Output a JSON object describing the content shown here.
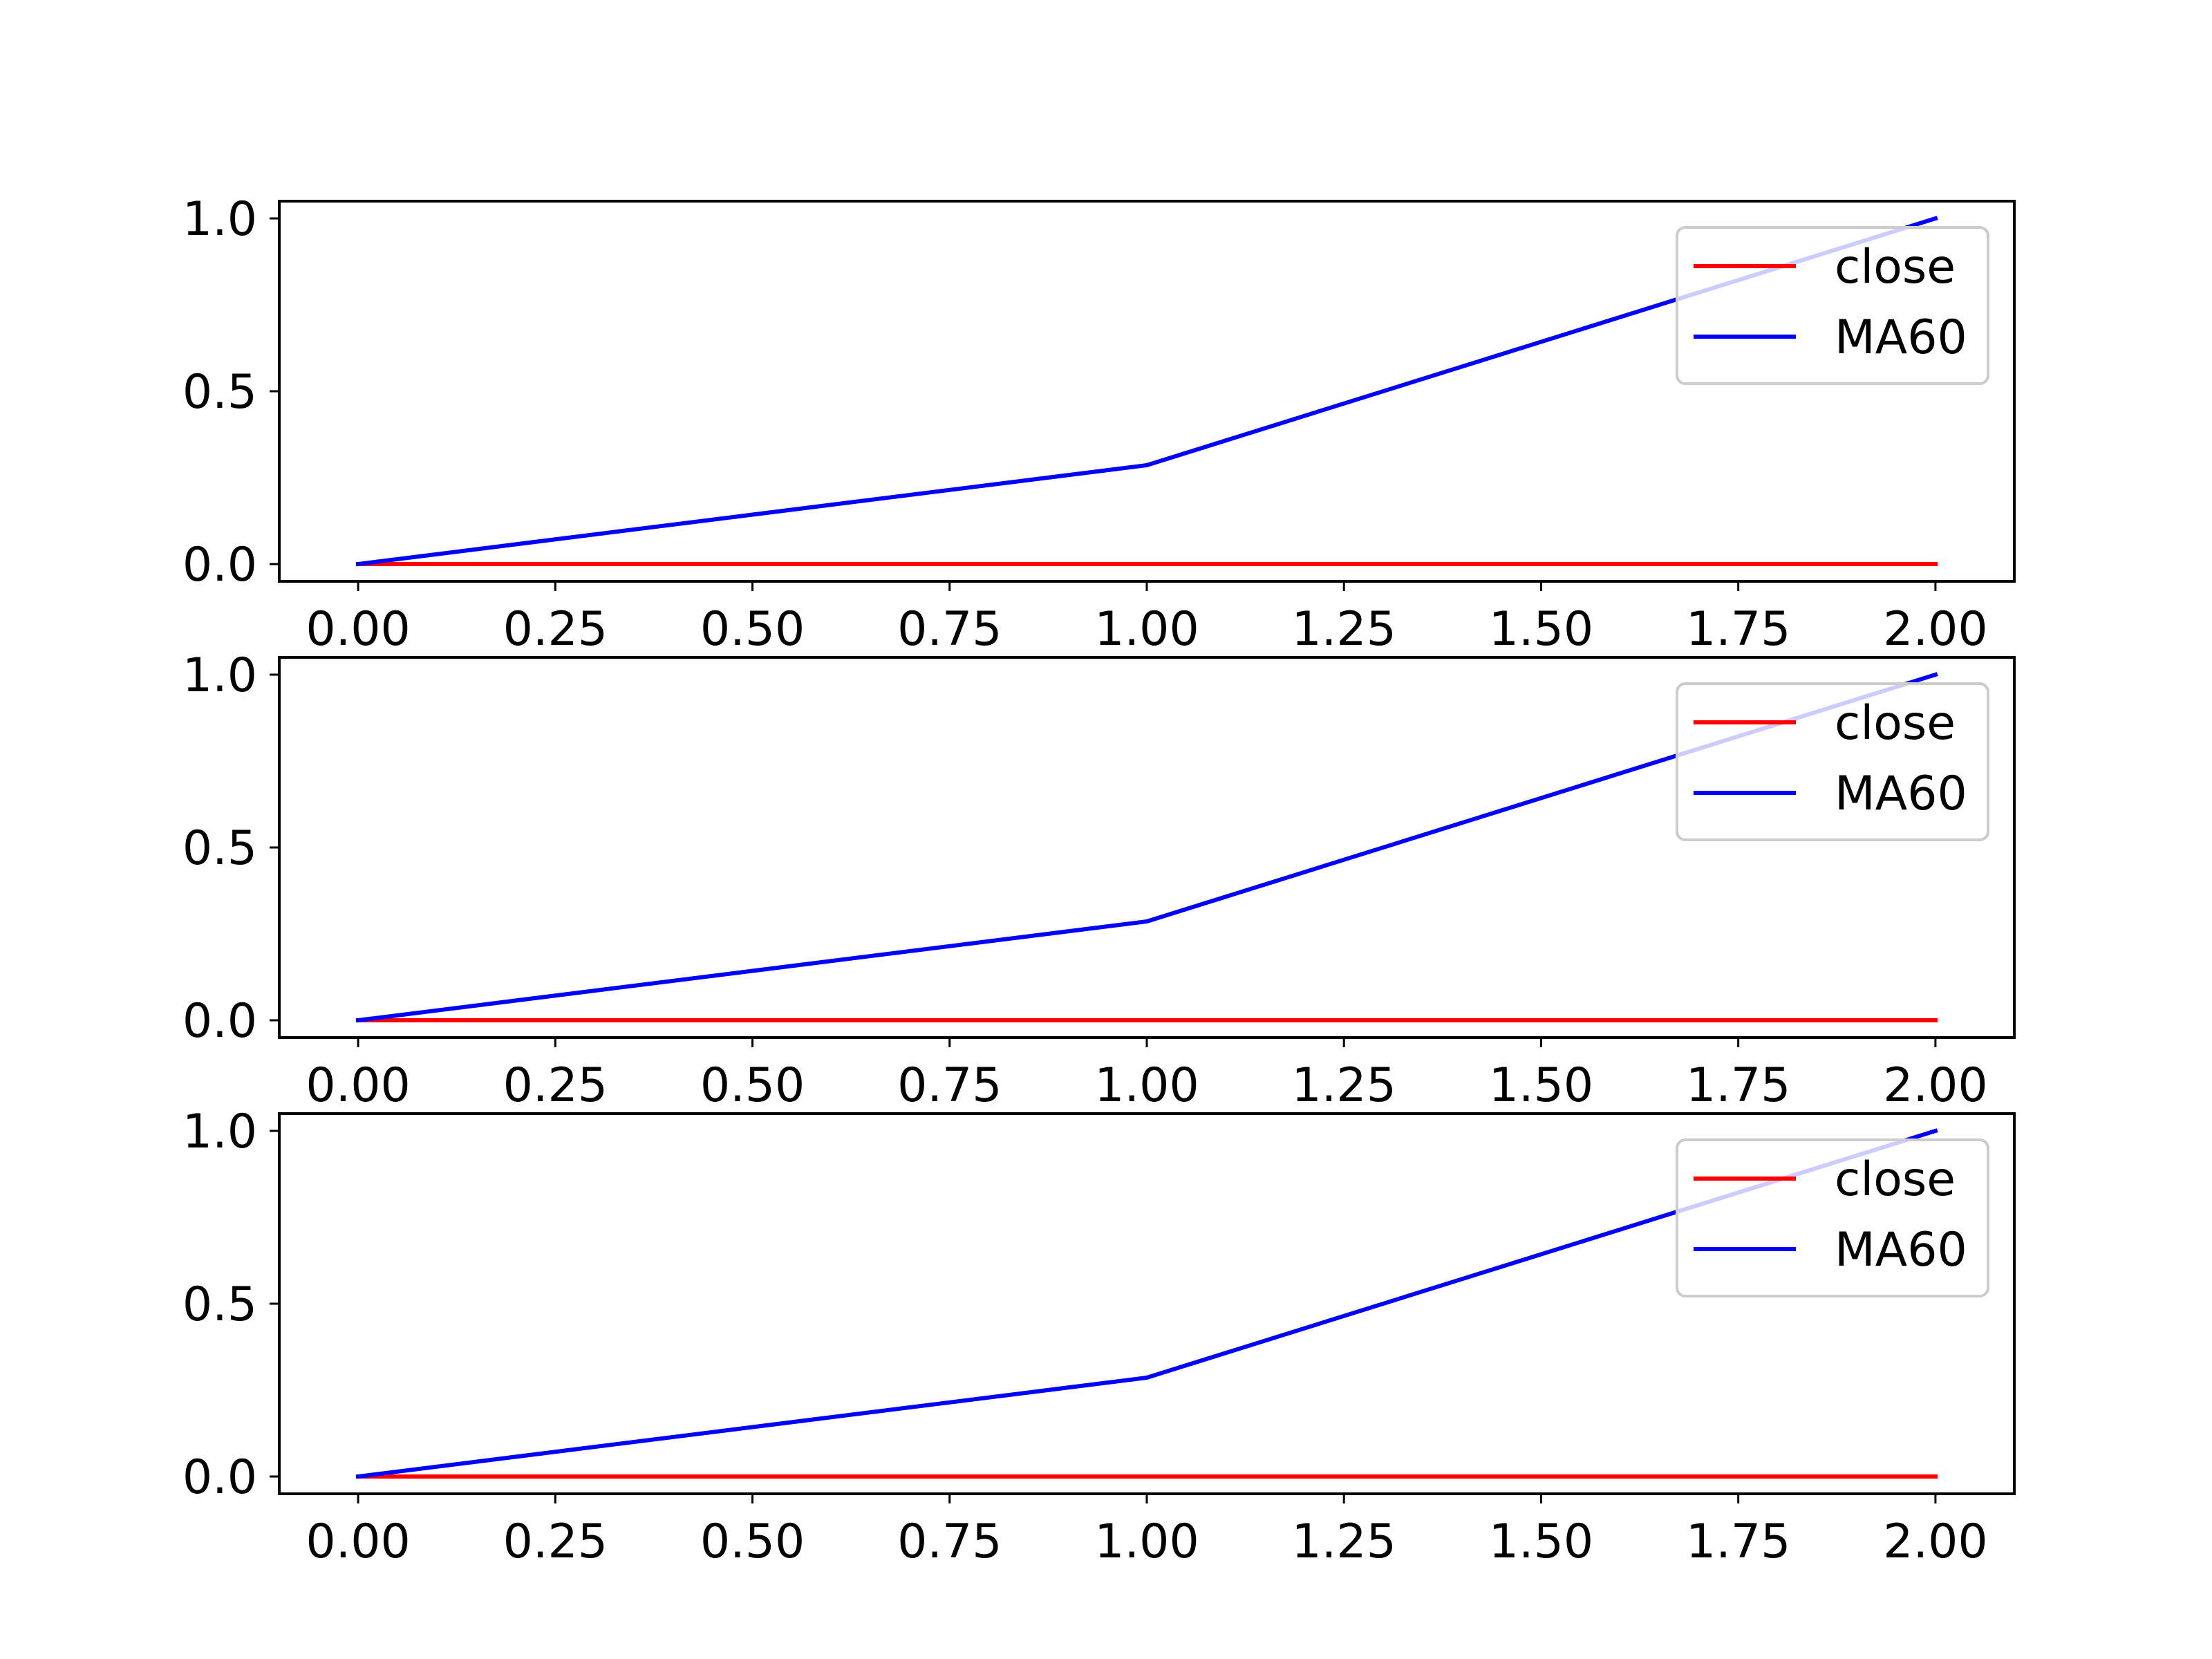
{
  "chart_data": [
    {
      "type": "line",
      "title": "",
      "xlabel": "",
      "ylabel": "",
      "xlim": [
        -0.1,
        2.1
      ],
      "ylim": [
        -0.05,
        1.05
      ],
      "xticks": [
        "0.00",
        "0.25",
        "0.50",
        "0.75",
        "1.00",
        "1.25",
        "1.50",
        "1.75",
        "2.00"
      ],
      "yticks": [
        "0.0",
        "0.5",
        "1.0"
      ],
      "grid": false,
      "legend_position": "upper right",
      "series": [
        {
          "name": "close",
          "color": "#ff0000",
          "x": [
            0,
            1,
            2
          ],
          "y": [
            0,
            0,
            0
          ]
        },
        {
          "name": "MA60",
          "color": "#0000ff",
          "x": [
            0,
            1,
            2
          ],
          "y": [
            0,
            0.286,
            1.0
          ]
        }
      ]
    },
    {
      "type": "line",
      "title": "",
      "xlabel": "",
      "ylabel": "",
      "xlim": [
        -0.1,
        2.1
      ],
      "ylim": [
        -0.05,
        1.05
      ],
      "xticks": [
        "0.00",
        "0.25",
        "0.50",
        "0.75",
        "1.00",
        "1.25",
        "1.50",
        "1.75",
        "2.00"
      ],
      "yticks": [
        "0.0",
        "0.5",
        "1.0"
      ],
      "grid": false,
      "legend_position": "upper right",
      "series": [
        {
          "name": "close",
          "color": "#ff0000",
          "x": [
            0,
            1,
            2
          ],
          "y": [
            0,
            0,
            0
          ]
        },
        {
          "name": "MA60",
          "color": "#0000ff",
          "x": [
            0,
            1,
            2
          ],
          "y": [
            0,
            0.286,
            1.0
          ]
        }
      ]
    },
    {
      "type": "line",
      "title": "",
      "xlabel": "",
      "ylabel": "",
      "xlim": [
        -0.1,
        2.1
      ],
      "ylim": [
        -0.05,
        1.05
      ],
      "xticks": [
        "0.00",
        "0.25",
        "0.50",
        "0.75",
        "1.00",
        "1.25",
        "1.50",
        "1.75",
        "2.00"
      ],
      "yticks": [
        "0.0",
        "0.5",
        "1.0"
      ],
      "grid": false,
      "legend_position": "upper right",
      "series": [
        {
          "name": "close",
          "color": "#ff0000",
          "x": [
            0,
            1,
            2
          ],
          "y": [
            0,
            0,
            0
          ]
        },
        {
          "name": "MA60",
          "color": "#0000ff",
          "x": [
            0,
            1,
            2
          ],
          "y": [
            0,
            0.286,
            1.0
          ]
        }
      ]
    }
  ]
}
